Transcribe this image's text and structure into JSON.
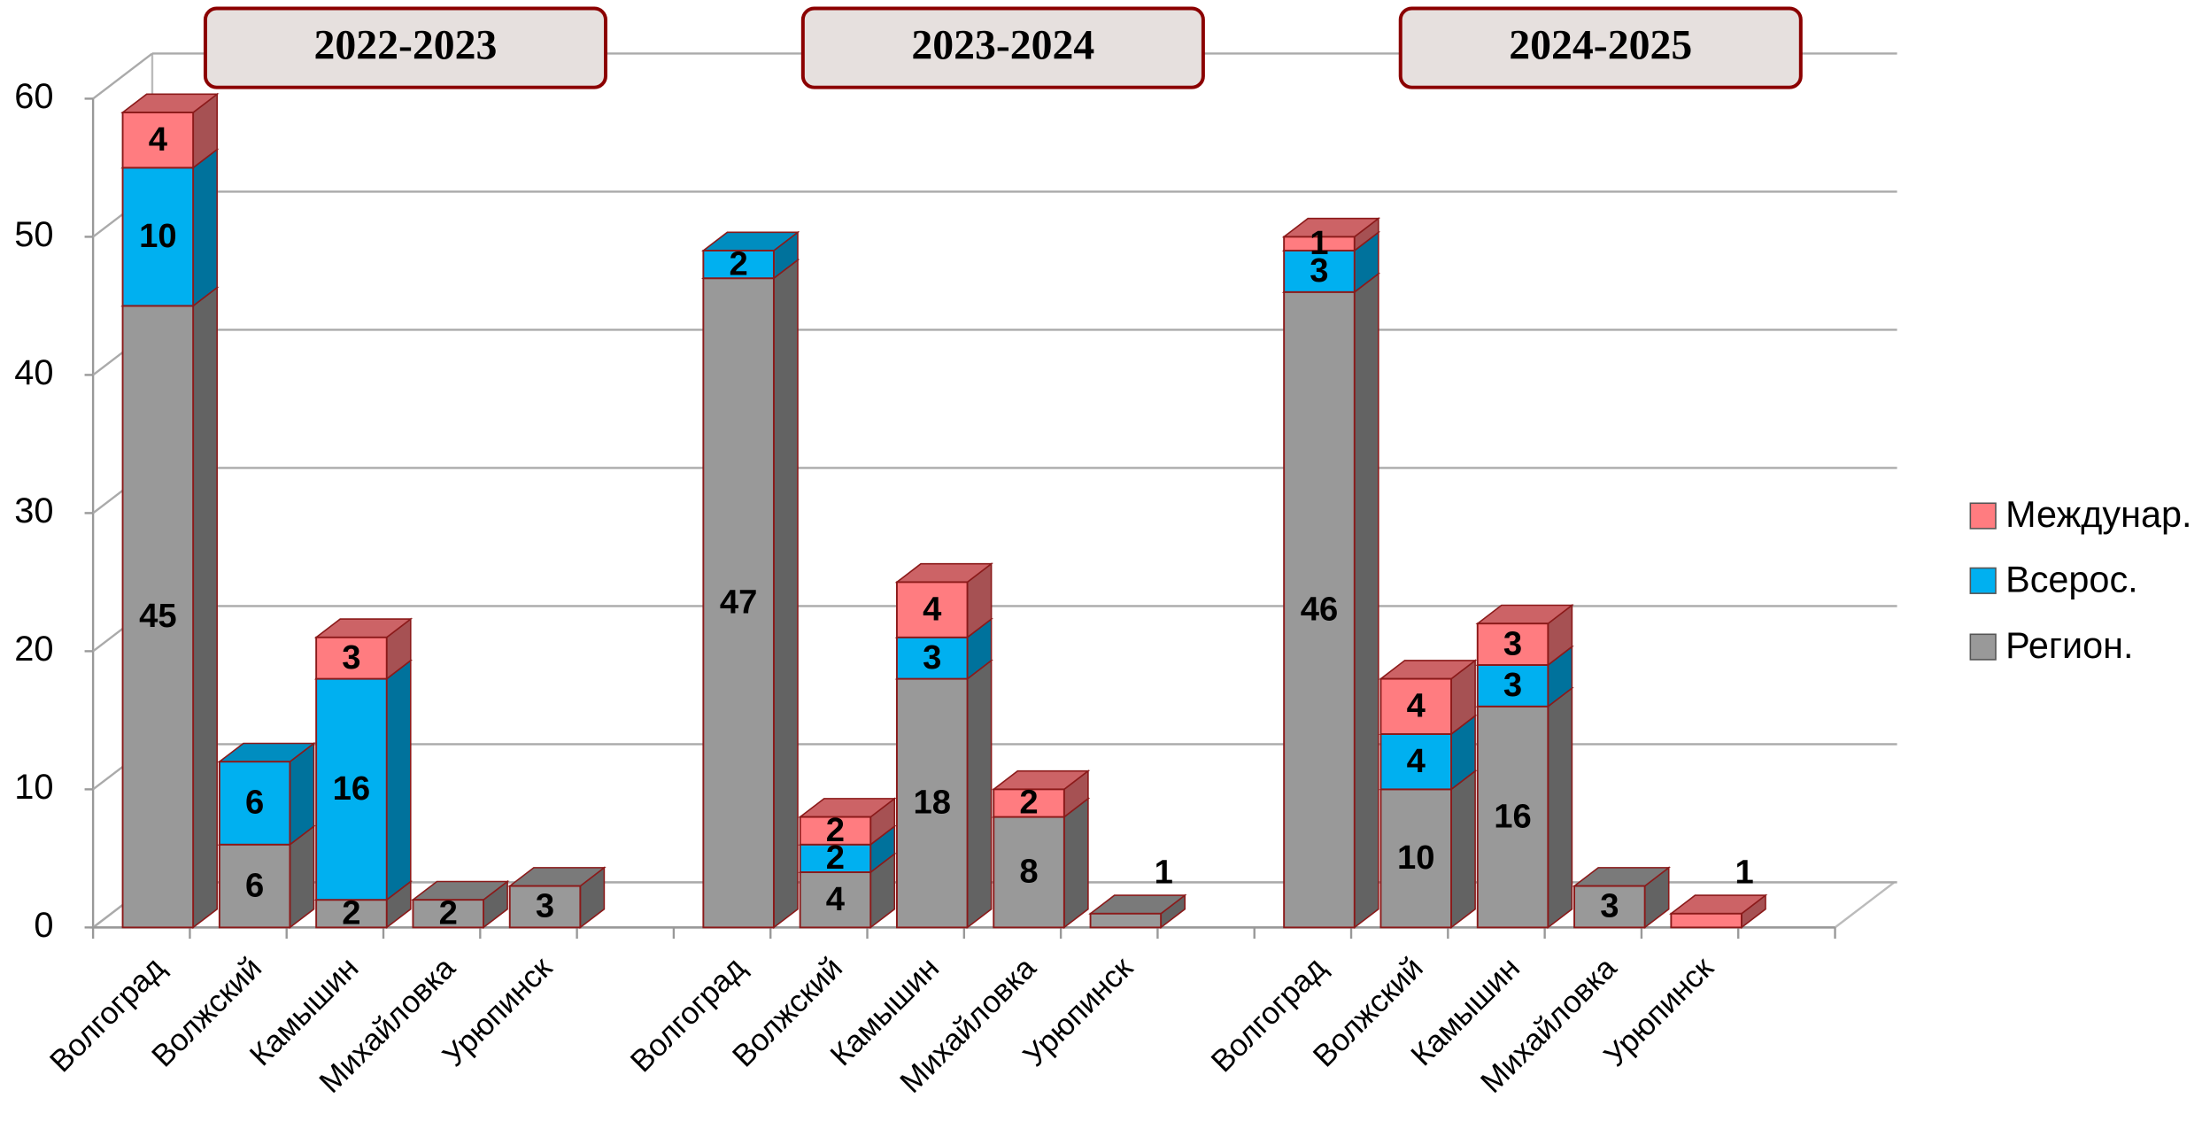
{
  "chart_data": {
    "type": "bar",
    "stacked": true,
    "groups": [
      "2022-2023",
      "2023-2024",
      "2024-2025"
    ],
    "categories": [
      "Волгоград",
      "Волжский",
      "Камышин",
      "Михайловка",
      "Урюпинск",
      null,
      "Волгоград",
      "Волжский",
      "Камышин",
      "Михайловка",
      "Урюпинск",
      null,
      "Волгоград",
      "Волжский",
      "Камышин",
      "Михайловка",
      "Урюпинск",
      null
    ],
    "series": [
      {
        "name": "Регион.",
        "color": "#999999",
        "values": [
          45,
          6,
          2,
          2,
          3,
          null,
          47,
          4,
          18,
          8,
          1,
          null,
          46,
          10,
          16,
          3,
          null,
          null
        ]
      },
      {
        "name": "Всерос.",
        "color": "#00b0f0",
        "values": [
          10,
          6,
          16,
          null,
          null,
          null,
          2,
          2,
          3,
          null,
          null,
          null,
          3,
          4,
          3,
          null,
          null,
          null
        ]
      },
      {
        "name": "Междунар.",
        "color": "#ff7c80",
        "values": [
          4,
          null,
          3,
          null,
          null,
          null,
          null,
          2,
          4,
          2,
          null,
          null,
          1,
          4,
          3,
          null,
          1,
          null
        ]
      }
    ],
    "ylim": [
      0,
      60
    ],
    "yticks": [
      0,
      10,
      20,
      30,
      40,
      50,
      60
    ],
    "grid": true,
    "legend": "right"
  }
}
